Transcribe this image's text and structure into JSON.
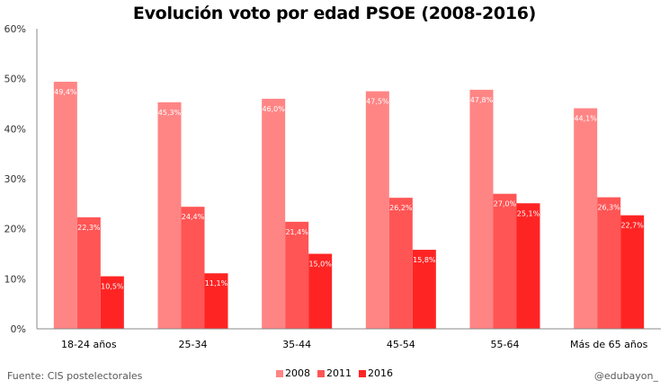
{
  "chart_data": {
    "type": "bar",
    "title": "Evolución voto por edad PSOE (2008-2016)",
    "xlabel": "",
    "ylabel": "",
    "ylim": [
      0,
      60
    ],
    "yticks": [
      "0%",
      "10%",
      "20%",
      "30%",
      "40%",
      "50%",
      "60%"
    ],
    "ytick_values": [
      0,
      10,
      20,
      30,
      40,
      50,
      60
    ],
    "categories": [
      "18-24 años",
      "25-34",
      "35-44",
      "45-54",
      "55-64",
      "Más de 65 años"
    ],
    "series": [
      {
        "name": "2008",
        "color": "#ff8585",
        "values": [
          49.4,
          45.3,
          46.0,
          47.5,
          47.8,
          44.1
        ],
        "labels": [
          "49,4%",
          "45,3%",
          "46,0%",
          "47,5%",
          "47,8%",
          "44,1%"
        ]
      },
      {
        "name": "2011",
        "color": "#ff5555",
        "values": [
          22.3,
          24.4,
          21.4,
          26.2,
          27.0,
          26.3
        ],
        "labels": [
          "22,3%",
          "24,4%",
          "21,4%",
          "26,2%",
          "27,0%",
          "26,3%"
        ]
      },
      {
        "name": "2016",
        "color": "#ff2424",
        "values": [
          10.5,
          11.1,
          15.0,
          15.8,
          25.1,
          22.7
        ],
        "labels": [
          "10,5%",
          "11,1%",
          "15,0%",
          "15,8%",
          "25,1%",
          "22,7%"
        ]
      }
    ],
    "grid": false,
    "legend": "bottom-center"
  },
  "footer": {
    "source": "Fuente: CIS postelectorales",
    "author": "@edubayon_"
  }
}
